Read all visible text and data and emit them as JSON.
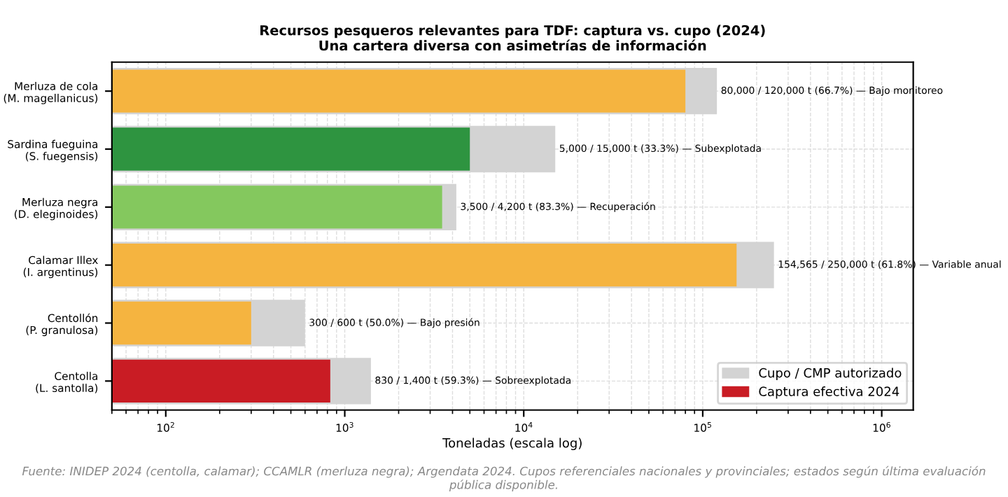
{
  "chart_data": {
    "type": "bar",
    "orientation": "horizontal",
    "title": "Recursos pesqueros relevantes para TDF: captura vs. cupo (2024)\nUna cartera diversa con asimetrías de información",
    "xlabel": "Toneladas (escala log)",
    "categories": [
      "Merluza de cola\n(M. magellanicus)",
      "Sardina fueguina\n(S. fuegensis)",
      "Merluza negra\n(D. eleginoides)",
      "Calamar Illex\n(I. argentinus)",
      "Centollón\n(P. granulosa)",
      "Centolla\n(L. santolla)"
    ],
    "series": [
      {
        "name": "Cupo / CMP autorizado",
        "color": "#d3d3d3",
        "values": [
          120000,
          15000,
          4200,
          250000,
          600,
          1400
        ],
        "value_labels": [
          "80,000 / 120,000 t (66.7%) — Bajo monitoreo",
          "5,000 / 15,000 t (33.3%) — Subexplotada",
          "3,500 / 4,200 t (83.3%) — Recuperación",
          "154,565 / 250,000 t (61.8%) — Variable anual",
          "300 / 600 t (50.0%) — Bajo presión",
          "830 / 1,400 t (59.3%) — Sobreexplotada"
        ]
      },
      {
        "name": "Captura efectiva 2024",
        "color": "#c91c24",
        "colors": [
          "#f5b440",
          "#2e9440",
          "#84c85e",
          "#f5b440",
          "#f5b440",
          "#c91c24"
        ],
        "values": [
          80000,
          5000,
          3500,
          154565,
          300,
          830
        ]
      }
    ],
    "log": "x",
    "xlim": [
      50,
      1500000
    ],
    "xticks": [
      {
        "value": 100,
        "label": "10$^{2}$"
      },
      {
        "value": 1000,
        "label": "10$^{3}$"
      },
      {
        "value": 10000,
        "label": "10$^{4}$"
      },
      {
        "value": 100000,
        "label": "10$^{5}$"
      },
      {
        "value": 1000000,
        "label": "10$^{6}$"
      }
    ],
    "grid": true,
    "legend": "bottom right",
    "annotations": [
      "Fuente: INIDEP 2024 (centolla, calamar); CCAMLR (merluza negra); Argendata 2024. Cupos referenciales nacionales y provinciales; estados según última evaluación pública disponible."
    ]
  }
}
